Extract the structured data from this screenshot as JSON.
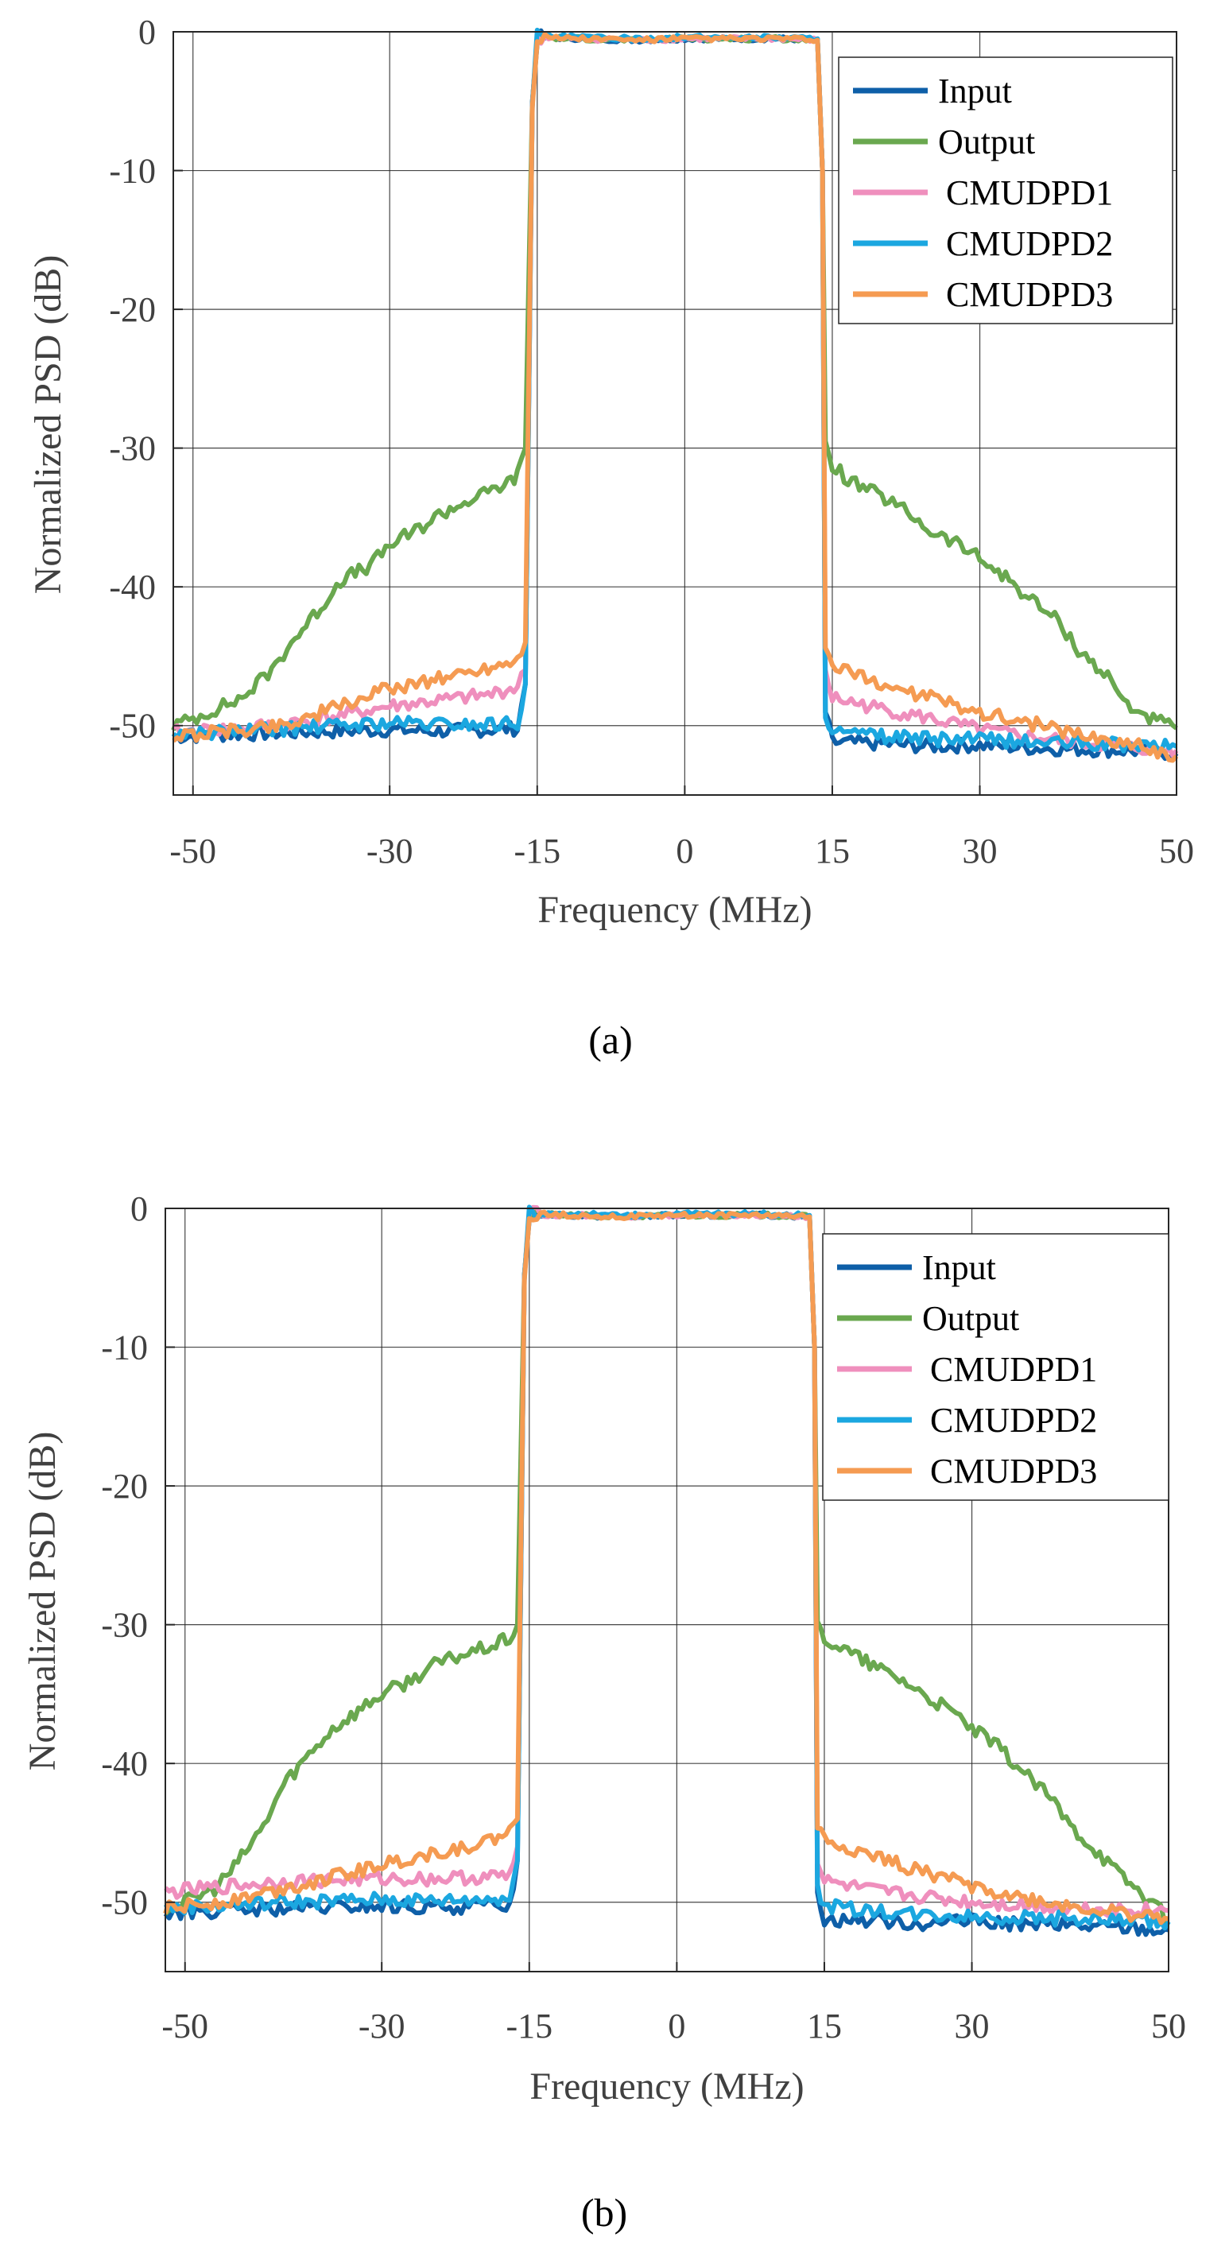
{
  "figure": {
    "captions": [
      "(a)",
      "(b)"
    ]
  },
  "chart_data": [
    {
      "panel": "(a)",
      "type": "line",
      "title": "",
      "xlabel": "Frequency (MHz)",
      "ylabel": "Normalized PSD (dB)",
      "xlim": [
        -52,
        50
      ],
      "ylim": [
        -55,
        0
      ],
      "xticks": [
        -50,
        -30,
        -15,
        0,
        15,
        30,
        50
      ],
      "yticks": [
        0,
        -10,
        -20,
        -30,
        -40,
        -50
      ],
      "grid": true,
      "legend_position": "top-right",
      "series": [
        {
          "name": "Input",
          "color": "#0e5fa8",
          "x": [
            -52,
            -45,
            -40,
            -35,
            -30,
            -25,
            -20,
            -17,
            -16.2,
            -15.5,
            -15,
            -10,
            -5,
            0,
            5,
            10,
            13.5,
            14,
            14.3,
            15,
            20,
            25,
            30,
            35,
            40,
            45,
            50
          ],
          "y": [
            -50.8,
            -50.6,
            -50.5,
            -50.4,
            -50.3,
            -50.4,
            -50.3,
            -50.2,
            -47,
            -5,
            -0.4,
            -0.5,
            -0.6,
            -0.5,
            -0.5,
            -0.5,
            -0.6,
            -10,
            -49,
            -51.2,
            -51.3,
            -51.5,
            -51.4,
            -51.6,
            -51.7,
            -51.8,
            -52
          ]
        },
        {
          "name": "Output",
          "color": "#6aa84f",
          "x": [
            -52,
            -50,
            -45,
            -42,
            -40,
            -37,
            -35,
            -32,
            -30,
            -27,
            -25,
            -22,
            -20,
            -18,
            -17,
            -16.2,
            -15.5,
            -15,
            -10,
            -5,
            0,
            5,
            10,
            13.5,
            14,
            14.3,
            15,
            17,
            20,
            23,
            25,
            28,
            30,
            33,
            35,
            38,
            40,
            43,
            45,
            48,
            50
          ],
          "y": [
            -50,
            -49.5,
            -48,
            -46,
            -44,
            -41.5,
            -39.5,
            -38.5,
            -37,
            -35.8,
            -34.8,
            -33.8,
            -33.2,
            -32.5,
            -32,
            -30,
            -5,
            -0.4,
            -0.5,
            -0.6,
            -0.5,
            -0.5,
            -0.5,
            -0.6,
            -10,
            -30,
            -31.2,
            -32.5,
            -33.5,
            -34.8,
            -36,
            -37,
            -38,
            -39.5,
            -40.8,
            -42.5,
            -44.5,
            -46.5,
            -48.5,
            -49.7,
            -50.2
          ]
        },
        {
          "name": "CMUDPD1",
          "color": "#ef8fbd",
          "x": [
            -52,
            -45,
            -40,
            -35,
            -30,
            -25,
            -20,
            -17,
            -16.2,
            -15.5,
            -15,
            -10,
            -5,
            0,
            5,
            10,
            13.5,
            14,
            14.3,
            15,
            20,
            25,
            30,
            35,
            40,
            45,
            50
          ],
          "y": [
            -50.5,
            -50.2,
            -49.8,
            -49.3,
            -48.6,
            -48.2,
            -47.8,
            -47.2,
            -46,
            -5,
            -0.4,
            -0.5,
            -0.6,
            -0.5,
            -0.5,
            -0.5,
            -0.6,
            -10,
            -46,
            -48,
            -48.8,
            -49.5,
            -50.3,
            -50.8,
            -51.2,
            -51.6,
            -51.8
          ]
        },
        {
          "name": "CMUDPD2",
          "color": "#1ba7e0",
          "x": [
            -52,
            -45,
            -40,
            -35,
            -30,
            -25,
            -20,
            -17,
            -16.2,
            -15.5,
            -15,
            -10,
            -5,
            0,
            5,
            10,
            13.5,
            14,
            14.3,
            15,
            20,
            25,
            30,
            35,
            40,
            45,
            50
          ],
          "y": [
            -50.6,
            -50.4,
            -50.2,
            -50,
            -49.8,
            -49.9,
            -49.9,
            -49.8,
            -47,
            -5,
            -0.3,
            -0.4,
            -0.5,
            -0.4,
            -0.4,
            -0.4,
            -0.5,
            -10,
            -49,
            -50.5,
            -50.8,
            -51,
            -51,
            -51.2,
            -51.3,
            -51.4,
            -51.5
          ]
        },
        {
          "name": "CMUDPD3",
          "color": "#f59b52",
          "x": [
            -52,
            -45,
            -40,
            -35,
            -30,
            -25,
            -20,
            -17,
            -16.2,
            -15.5,
            -15,
            -10,
            -5,
            0,
            5,
            10,
            13.5,
            14,
            14.3,
            15,
            20,
            25,
            30,
            35,
            40,
            45,
            50
          ],
          "y": [
            -50.8,
            -50.3,
            -49.8,
            -48.6,
            -47.3,
            -46.6,
            -45.8,
            -45.2,
            -44,
            -5,
            -0.4,
            -0.5,
            -0.6,
            -0.5,
            -0.5,
            -0.5,
            -0.6,
            -10,
            -44.5,
            -45.8,
            -47,
            -48,
            -49,
            -49.8,
            -50.6,
            -51.3,
            -52.2
          ]
        }
      ]
    },
    {
      "panel": "(b)",
      "type": "line",
      "title": "",
      "xlabel": "Frequency (MHz)",
      "ylabel": "Normalized PSD (dB)",
      "xlim": [
        -52,
        50
      ],
      "ylim": [
        -55,
        0
      ],
      "xticks": [
        -50,
        -30,
        -15,
        0,
        15,
        30,
        50
      ],
      "yticks": [
        0,
        -10,
        -20,
        -30,
        -40,
        -50
      ],
      "grid": true,
      "legend_position": "top-right",
      "series": [
        {
          "name": "Input",
          "color": "#0e5fa8",
          "x": [
            -52,
            -45,
            -40,
            -35,
            -30,
            -25,
            -20,
            -17,
            -16.2,
            -15.5,
            -15,
            -10,
            -5,
            0,
            5,
            10,
            13.5,
            14,
            14.3,
            15,
            20,
            25,
            30,
            35,
            40,
            45,
            50
          ],
          "y": [
            -50.8,
            -50.6,
            -50.5,
            -50.4,
            -50.3,
            -50.4,
            -50.3,
            -50.2,
            -47,
            -5,
            -0.4,
            -0.5,
            -0.6,
            -0.5,
            -0.5,
            -0.5,
            -0.6,
            -10,
            -49,
            -51.2,
            -51.3,
            -51.5,
            -51.4,
            -51.6,
            -51.7,
            -51.8,
            -52
          ]
        },
        {
          "name": "Output",
          "color": "#6aa84f",
          "x": [
            -52,
            -50,
            -47,
            -45,
            -42,
            -40,
            -37,
            -35,
            -32,
            -30,
            -27,
            -25,
            -22,
            -20,
            -18,
            -17,
            -16.2,
            -15.5,
            -15,
            -10,
            -5,
            0,
            5,
            10,
            13.5,
            14,
            14.3,
            15,
            17,
            20,
            23,
            25,
            28,
            30,
            33,
            35,
            38,
            40,
            43,
            45,
            48,
            50
          ],
          "y": [
            -50.5,
            -50,
            -49,
            -47.5,
            -44.5,
            -41.5,
            -39,
            -37.5,
            -36,
            -35,
            -34,
            -33,
            -32.2,
            -31.8,
            -31.3,
            -31,
            -30,
            -5,
            -0.4,
            -0.5,
            -0.6,
            -0.5,
            -0.5,
            -0.5,
            -0.6,
            -10,
            -30,
            -31,
            -31.8,
            -33,
            -34,
            -35,
            -36.3,
            -37.5,
            -39,
            -40.5,
            -42.5,
            -44.5,
            -46.5,
            -48,
            -49.8,
            -51.3
          ]
        },
        {
          "name": "CMUDPD1",
          "color": "#ef8fbd",
          "x": [
            -52,
            -45,
            -40,
            -35,
            -30,
            -25,
            -20,
            -17,
            -16.2,
            -15.5,
            -15,
            -10,
            -5,
            0,
            5,
            10,
            13.5,
            14,
            14.3,
            15,
            20,
            25,
            30,
            35,
            40,
            45,
            50
          ],
          "y": [
            -49.3,
            -48.8,
            -48.5,
            -48.4,
            -48.3,
            -48.3,
            -48.2,
            -48.1,
            -46,
            -5,
            -0.4,
            -0.5,
            -0.6,
            -0.5,
            -0.5,
            -0.5,
            -0.6,
            -10,
            -47,
            -48.5,
            -49.2,
            -49.6,
            -50,
            -50.2,
            -50.4,
            -50.5,
            -50.6
          ]
        },
        {
          "name": "CMUDPD2",
          "color": "#1ba7e0",
          "x": [
            -52,
            -45,
            -40,
            -35,
            -30,
            -25,
            -20,
            -17,
            -16.2,
            -15.5,
            -15,
            -10,
            -5,
            0,
            5,
            10,
            13.5,
            14,
            14.3,
            15,
            20,
            25,
            30,
            35,
            40,
            45,
            50
          ],
          "y": [
            -50.4,
            -50.2,
            -50,
            -49.9,
            -49.8,
            -49.9,
            -49.8,
            -49.7,
            -47,
            -5,
            -0.3,
            -0.4,
            -0.5,
            -0.4,
            -0.4,
            -0.4,
            -0.5,
            -10,
            -49,
            -50.3,
            -50.6,
            -50.9,
            -51,
            -51.1,
            -51.2,
            -51.3,
            -51.4
          ]
        },
        {
          "name": "CMUDPD3",
          "color": "#f59b52",
          "x": [
            -52,
            -45,
            -40,
            -35,
            -30,
            -25,
            -20,
            -17,
            -16.2,
            -15.5,
            -15,
            -10,
            -5,
            0,
            5,
            10,
            13.5,
            14,
            14.3,
            15,
            20,
            25,
            30,
            35,
            40,
            45,
            50
          ],
          "y": [
            -50.5,
            -49.8,
            -49,
            -48.2,
            -47.3,
            -46.5,
            -45.8,
            -45,
            -44,
            -5,
            -0.4,
            -0.5,
            -0.6,
            -0.5,
            -0.5,
            -0.5,
            -0.6,
            -10,
            -44.5,
            -45.5,
            -46.7,
            -47.8,
            -48.8,
            -49.7,
            -50.3,
            -50.8,
            -51.2
          ]
        }
      ]
    }
  ]
}
